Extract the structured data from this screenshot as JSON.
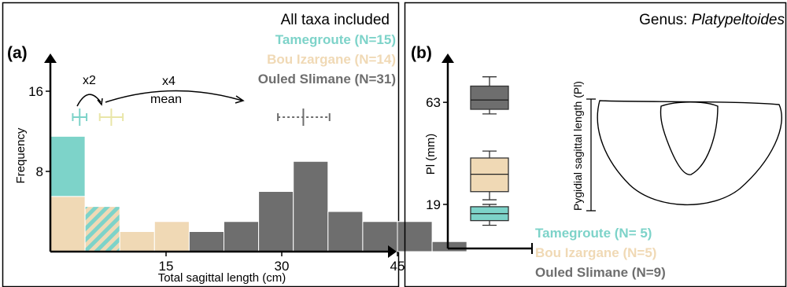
{
  "colors": {
    "tamegroute": "#7dd3c9",
    "bou_izargane": "#f0d9b5",
    "ouled_slimane": "#6e6e6e",
    "axis": "#000000",
    "frame": "#000000"
  },
  "chart_data": [
    {
      "type": "bar",
      "panel_label": "(a)",
      "title": "All taxa included",
      "xlabel": "Total sagittal length (cm)",
      "ylabel": "Frequency",
      "x_ticks": [
        15,
        30,
        45
      ],
      "y_ticks": [
        8,
        16
      ],
      "x_range": [
        0,
        54
      ],
      "y_range": [
        0,
        18
      ],
      "bin_width": 4.5,
      "legend": [
        {
          "label": "Tamegroute (N=15)",
          "color": "#7dd3c9"
        },
        {
          "label": "Bou Izargane (N=14)",
          "color": "#f0d9b5"
        },
        {
          "label": "Ouled Slimane (N=31)",
          "color": "#6e6e6e"
        }
      ],
      "series": [
        {
          "name": "Tamegroute (N=15)",
          "bins": [
            {
              "x0": 0,
              "count": 11.5,
              "stack_base": 5.5
            },
            {
              "x0": 4.5,
              "count": 4.5,
              "stack_base": 0,
              "hatched": true
            }
          ]
        },
        {
          "name": "Bou Izargane (N=14)",
          "bins": [
            {
              "x0": 0,
              "count": 5.5
            },
            {
              "x0": 4.5,
              "count": 4.5,
              "hatched": true
            },
            {
              "x0": 9,
              "count": 2
            },
            {
              "x0": 13.5,
              "count": 3
            }
          ]
        },
        {
          "name": "Ouled Slimane (N=31)",
          "bins": [
            {
              "x0": 18,
              "count": 2
            },
            {
              "x0": 22.5,
              "count": 3
            },
            {
              "x0": 27,
              "count": 6
            },
            {
              "x0": 31.5,
              "count": 9
            },
            {
              "x0": 36,
              "count": 4
            },
            {
              "x0": 40.5,
              "count": 3
            },
            {
              "x0": 45,
              "count": 3
            },
            {
              "x0": 49.5,
              "count": 1
            }
          ]
        }
      ],
      "mean_markers": [
        {
          "group": "Tamegroute",
          "mean": 3.8,
          "low": 2.9,
          "high": 4.7
        },
        {
          "group": "Bou Izargane",
          "mean": 7.9,
          "low": 6.4,
          "high": 9.4
        },
        {
          "group": "Ouled Slimane",
          "mean": 32.8,
          "low": 29.5,
          "high": 36.2
        }
      ],
      "annotations": {
        "factor_1": "x2",
        "factor_2": "x4",
        "factor_2_sub": "mean"
      }
    },
    {
      "type": "box",
      "panel_label": "(b)",
      "title_prefix": "Genus: ",
      "title_genus": "Platypeltoides",
      "ylabel": "Pl (mm)",
      "y_ticks": [
        19,
        63
      ],
      "y_range": [
        0,
        80
      ],
      "legend": [
        {
          "label": "Tamegroute (N= 5)",
          "color": "#7dd3c9"
        },
        {
          "label": "Bou Izargane (N=5)",
          "color": "#f0d9b5"
        },
        {
          "label": "Ouled Slimane (N=9)",
          "color": "#6e6e6e"
        }
      ],
      "boxes": [
        {
          "group": "Ouled Slimane",
          "min": 58,
          "q1": 60,
          "median": 64,
          "q3": 70,
          "max": 74
        },
        {
          "group": "Bou Izargane",
          "min": 21,
          "q1": 24.5,
          "median": 32,
          "q3": 39,
          "max": 42
        },
        {
          "group": "Tamegroute",
          "min": 10,
          "q1": 12,
          "median": 15,
          "q3": 18,
          "max": 19
        }
      ],
      "outline_label": "Pygidial sagittal length (Pl)"
    }
  ]
}
